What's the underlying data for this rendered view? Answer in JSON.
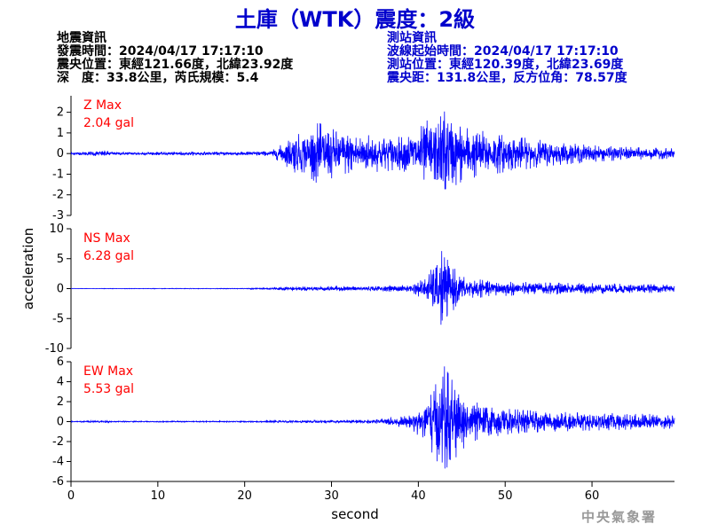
{
  "title": "土庫（WTK）震度：2級",
  "earthquake_info": {
    "heading": "地震資訊",
    "origin_time": "發震時間：2024/04/17 17:17:10",
    "epicenter": "震央位置：東經121.66度，北緯23.92度",
    "depth_magnitude": "深　度：33.8公里，芮氏規模：5.4"
  },
  "station_info": {
    "heading": "測站資訊",
    "waveform_start": "波線起始時間：2024/04/17 17:17:10",
    "station_location": "測站位置：東經120.39度，北緯23.69度",
    "distance_azimuth": "震央距：131.8公里，反方位角：78.57度"
  },
  "agency": "中央氣象署",
  "chart_data": {
    "type": "line",
    "xlabel": "second",
    "ylabel": "acceleration",
    "xlim": [
      0,
      69.5
    ],
    "xticks": [
      0,
      10,
      20,
      30,
      40,
      50,
      60
    ],
    "line_color": "#0000ff",
    "max_label_color": "#ff0000",
    "panels": [
      {
        "name": "Z",
        "max_label": "Z Max",
        "max_value_label": "2.04 gal",
        "max_value": 2.04,
        "ylim": [
          -3,
          2.8
        ],
        "yticks": [
          2,
          1,
          0,
          -1,
          -2,
          -3
        ],
        "envelope": [
          [
            0,
            0.05
          ],
          [
            4,
            0.15
          ],
          [
            5,
            0.07
          ],
          [
            17,
            0.08
          ],
          [
            23,
            0.12
          ],
          [
            24.5,
            0.5
          ],
          [
            25.5,
            0.9
          ],
          [
            27,
            1.0
          ],
          [
            28.5,
            1.5
          ],
          [
            30,
            1.2
          ],
          [
            32,
            1.0
          ],
          [
            35,
            0.9
          ],
          [
            38,
            0.8
          ],
          [
            40,
            1.2
          ],
          [
            41,
            1.6
          ],
          [
            42,
            1.5
          ],
          [
            43,
            2.04
          ],
          [
            44,
            1.6
          ],
          [
            46,
            1.2
          ],
          [
            50,
            0.9
          ],
          [
            55,
            0.6
          ],
          [
            60,
            0.4
          ],
          [
            65,
            0.3
          ],
          [
            69.5,
            0.25
          ]
        ]
      },
      {
        "name": "NS",
        "max_label": "NS Max",
        "max_value_label": "6.28 gal",
        "max_value": 6.28,
        "ylim": [
          -10,
          10
        ],
        "yticks": [
          10,
          5,
          0,
          -5,
          -10
        ],
        "envelope": [
          [
            0,
            0.03
          ],
          [
            20,
            0.05
          ],
          [
            25,
            0.3
          ],
          [
            30,
            0.4
          ],
          [
            35,
            0.4
          ],
          [
            39,
            0.6
          ],
          [
            41,
            2.0
          ],
          [
            42,
            4.5
          ],
          [
            42.7,
            6.28
          ],
          [
            43.5,
            4.5
          ],
          [
            45,
            2.0
          ],
          [
            48,
            1.3
          ],
          [
            55,
            1.0
          ],
          [
            60,
            0.9
          ],
          [
            65,
            0.8
          ],
          [
            69.5,
            0.6
          ]
        ]
      },
      {
        "name": "EW",
        "max_label": "EW Max",
        "max_value_label": "5.53 gal",
        "max_value": 5.53,
        "ylim": [
          -6,
          6
        ],
        "yticks": [
          6,
          4,
          2,
          0,
          -2,
          -4,
          -6
        ],
        "envelope": [
          [
            0,
            0.04
          ],
          [
            4,
            0.12
          ],
          [
            5,
            0.05
          ],
          [
            20,
            0.06
          ],
          [
            25,
            0.1
          ],
          [
            35,
            0.2
          ],
          [
            39,
            0.6
          ],
          [
            40.5,
            1.8
          ],
          [
            41.5,
            3.0
          ],
          [
            42.5,
            4.5
          ],
          [
            43,
            5.53
          ],
          [
            44,
            4.0
          ],
          [
            45,
            2.8
          ],
          [
            47,
            1.8
          ],
          [
            50,
            1.3
          ],
          [
            55,
            1.0
          ],
          [
            60,
            0.9
          ],
          [
            65,
            0.8
          ],
          [
            69.5,
            0.7
          ]
        ]
      }
    ]
  }
}
